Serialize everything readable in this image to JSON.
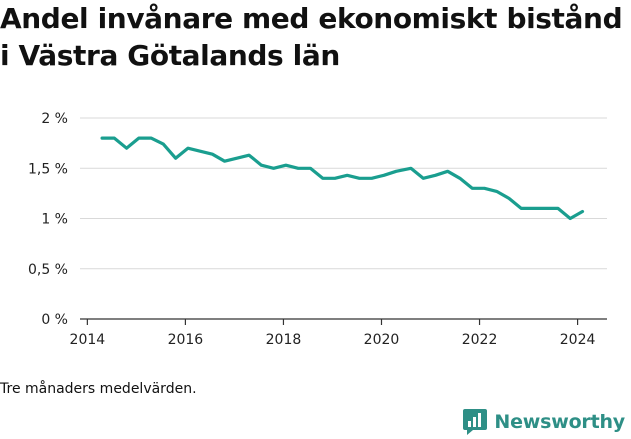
{
  "title": "Andel invånare med ekonomiskt bistånd i Västra Götalands län",
  "caption": "Tre månaders medelvärden.",
  "brand": {
    "name": "Newsworthy",
    "icon": "newsworthy-logo-icon",
    "color": "#2e8f86"
  },
  "colors": {
    "line": "#1a9e8f",
    "grid": "#d9d9d9",
    "axis": "#333333"
  },
  "chart_data": {
    "type": "line",
    "title": "Andel invånare med ekonomiskt bistånd i Västra Götalands län",
    "xlabel": "",
    "ylabel": "",
    "xlim": [
      2013.85,
      2024.6
    ],
    "ylim": [
      0,
      2
    ],
    "x_ticks": [
      2014,
      2016,
      2018,
      2020,
      2022,
      2024
    ],
    "x_tick_labels": [
      "2014",
      "2016",
      "2018",
      "2020",
      "2022",
      "2024"
    ],
    "y_ticks": [
      0,
      0.5,
      1,
      1.5,
      2
    ],
    "y_tick_labels": [
      "0 %",
      "0,5 %",
      "1 %",
      "1,5 %",
      "2 %"
    ],
    "grid": true,
    "legend": "none",
    "series": [
      {
        "color": "#1a9e8f",
        "x": [
          2014.3,
          2014.55,
          2014.8,
          2015.05,
          2015.3,
          2015.55,
          2015.8,
          2016.05,
          2016.3,
          2016.55,
          2016.8,
          2017.05,
          2017.3,
          2017.55,
          2017.8,
          2018.05,
          2018.3,
          2018.55,
          2018.8,
          2019.05,
          2019.3,
          2019.55,
          2019.8,
          2020.05,
          2020.3,
          2020.6,
          2020.85,
          2021.1,
          2021.35,
          2021.6,
          2021.85,
          2022.1,
          2022.35,
          2022.6,
          2022.85,
          2023.1,
          2023.35,
          2023.6,
          2023.85,
          2024.1
        ],
        "y": [
          1.8,
          1.8,
          1.7,
          1.8,
          1.8,
          1.74,
          1.6,
          1.7,
          1.67,
          1.64,
          1.57,
          1.6,
          1.63,
          1.53,
          1.5,
          1.53,
          1.5,
          1.5,
          1.4,
          1.4,
          1.43,
          1.4,
          1.4,
          1.43,
          1.47,
          1.5,
          1.4,
          1.43,
          1.47,
          1.4,
          1.3,
          1.3,
          1.27,
          1.2,
          1.1,
          1.1,
          1.1,
          1.1,
          1.0,
          1.07
        ]
      }
    ]
  }
}
